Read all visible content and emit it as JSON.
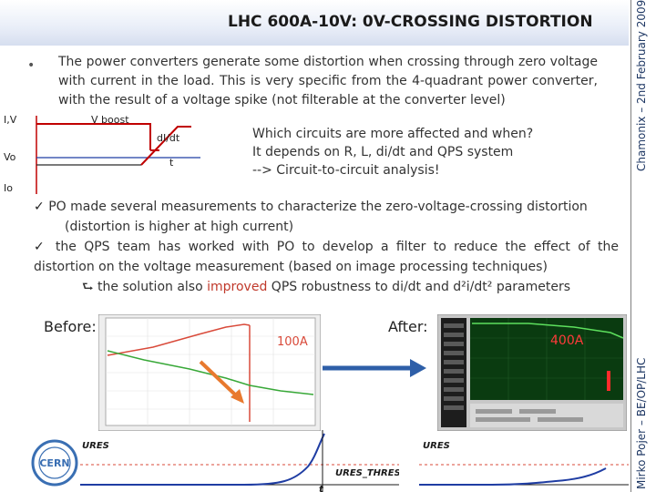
{
  "title": "LHC 600A-10V: 0V-CROSSING DISTORTION",
  "side_text": {
    "top": "Chamonix – 2nd February 2009",
    "bottom": "Mirko Pojer – BE/OP/LHC"
  },
  "bullet_symbol": "•",
  "intro": "The power converters generate some distortion when crossing through zero voltage with current in the load. This is very specific from the 4-quadrant power converter, with the result of a voltage spike (not filterable at the converter level)",
  "diagram": {
    "label_iv": "I,V",
    "label_vboost": "V boost",
    "label_didt": "dI/dt",
    "label_vo": "Vo",
    "label_t": "t",
    "label_io": "Io"
  },
  "question": {
    "line1": "Which circuits are more affected and when?",
    "line2": "It depends on R, L, di/dt and QPS system",
    "line3": "--> Circuit-to-circuit analysis!"
  },
  "points": {
    "check": "✓",
    "item1_a": "PO made several measurements to characterize the zero-voltage-crossing distortion",
    "item1_b": "(distortion is higher at high current)",
    "item2": "the QPS team has worked with PO to develop a filter to reduce the effect of the distortion on the voltage measurement (based on image processing techniques)",
    "arrow": "⮑",
    "item3_pre": "the solution also",
    "item3_red": "improved",
    "item3_post": "QPS robustness to di/dt and d²i/dt² parameters"
  },
  "before_label": "Before:",
  "after_label": "After:",
  "before_plot_label": "100A",
  "after_plot_label": "400A",
  "logo_text": "CERN",
  "waveforms": {
    "ures1": "URES",
    "ures1_threshold": "URES_THRESHOLD",
    "t": "t",
    "ures2": "URES"
  },
  "colors": {
    "accent_red": "#c0392b",
    "arrow_blue": "#2e5fa8",
    "plot_green": "#38a838",
    "plot_red": "#d94a3a",
    "after_bg": "#0a3b10",
    "wave_blue": "#1f3da3"
  }
}
